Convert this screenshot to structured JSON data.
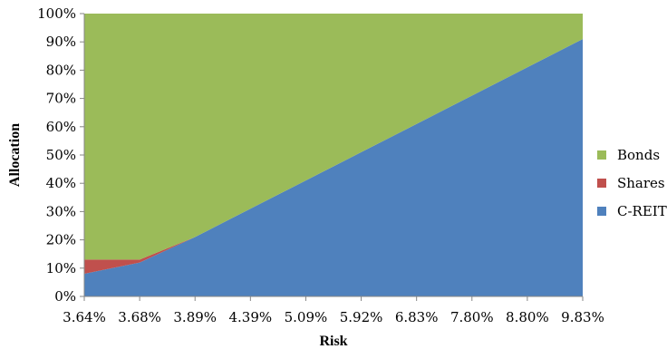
{
  "chart_data": {
    "type": "area",
    "stacked": true,
    "x": [
      "3.64%",
      "3.68%",
      "3.89%",
      "4.39%",
      "5.09%",
      "5.92%",
      "6.83%",
      "7.80%",
      "8.80%",
      "9.83%"
    ],
    "series": [
      {
        "name": "C-REIT",
        "values": [
          8,
          12,
          21,
          31,
          41,
          51,
          61,
          71,
          81,
          91
        ],
        "color": "#4f81bd"
      },
      {
        "name": "Shares",
        "values": [
          5,
          1,
          0,
          0,
          0,
          0,
          0,
          0,
          0,
          0
        ],
        "color": "#c0504d"
      },
      {
        "name": "Bonds",
        "values": [
          87,
          87,
          79,
          69,
          59,
          49,
          39,
          29,
          19,
          9
        ],
        "color": "#9bbb59"
      }
    ],
    "ylim": [
      0,
      100
    ],
    "yticks": [
      "0%",
      "10%",
      "20%",
      "30%",
      "40%",
      "50%",
      "60%",
      "70%",
      "80%",
      "90%",
      "100%"
    ],
    "xlabel": "Risk",
    "ylabel": "Allocation",
    "legend": [
      "Bonds",
      "Shares",
      "C-REIT"
    ],
    "legend_position": "right",
    "grid": false
  }
}
